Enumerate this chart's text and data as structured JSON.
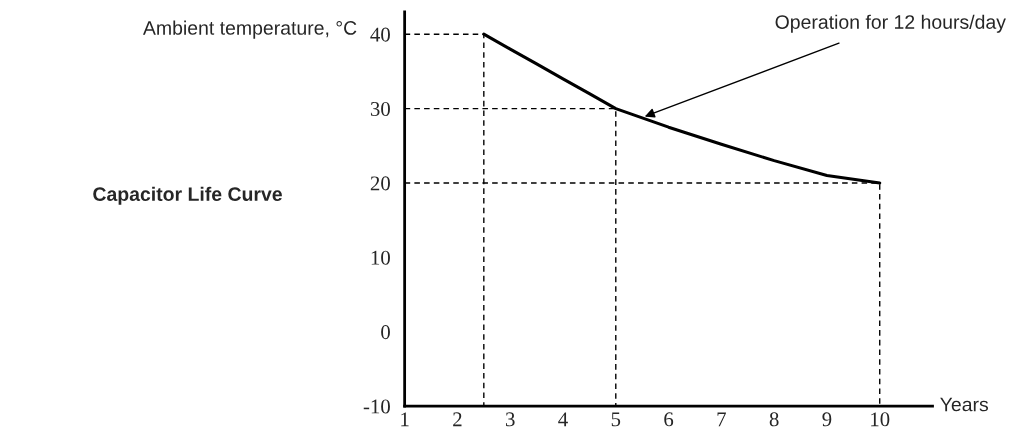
{
  "chart_data": {
    "type": "line",
    "title": "Capacitor Life Curve",
    "xlabel": "Years",
    "ylabel": "Ambient temperature, °C",
    "annotations": [
      {
        "text": "Operation for 12 hours/day",
        "x": 5.5,
        "y": 28.8
      }
    ],
    "xlim": [
      1,
      11
    ],
    "ylim": [
      -10,
      43
    ],
    "xticks": [
      1,
      2,
      3,
      4,
      5,
      6,
      7,
      8,
      9,
      10
    ],
    "yticks": [
      -10,
      0,
      10,
      20,
      30,
      40
    ],
    "grid": false,
    "series": [
      {
        "color": "#000000",
        "line_style": "solid",
        "x": [
          2.5,
          3,
          3.5,
          4,
          4.5,
          5,
          6,
          7,
          8,
          9,
          10
        ],
        "values": [
          40,
          38,
          36,
          34,
          32,
          30,
          27.5,
          25.2,
          23,
          21,
          20
        ]
      },
      {
        "color": "#000000",
        "line_style": "dashed",
        "x": [
          1,
          2.5,
          2.5
        ],
        "values": [
          40,
          40,
          -10
        ]
      },
      {
        "color": "#000000",
        "line_style": "dashed",
        "x": [
          1,
          5,
          5
        ],
        "values": [
          30,
          30,
          -10
        ]
      },
      {
        "color": "#000000",
        "line_style": "dashed",
        "x": [
          1,
          10,
          10
        ],
        "values": [
          20,
          20,
          -10
        ]
      }
    ]
  }
}
